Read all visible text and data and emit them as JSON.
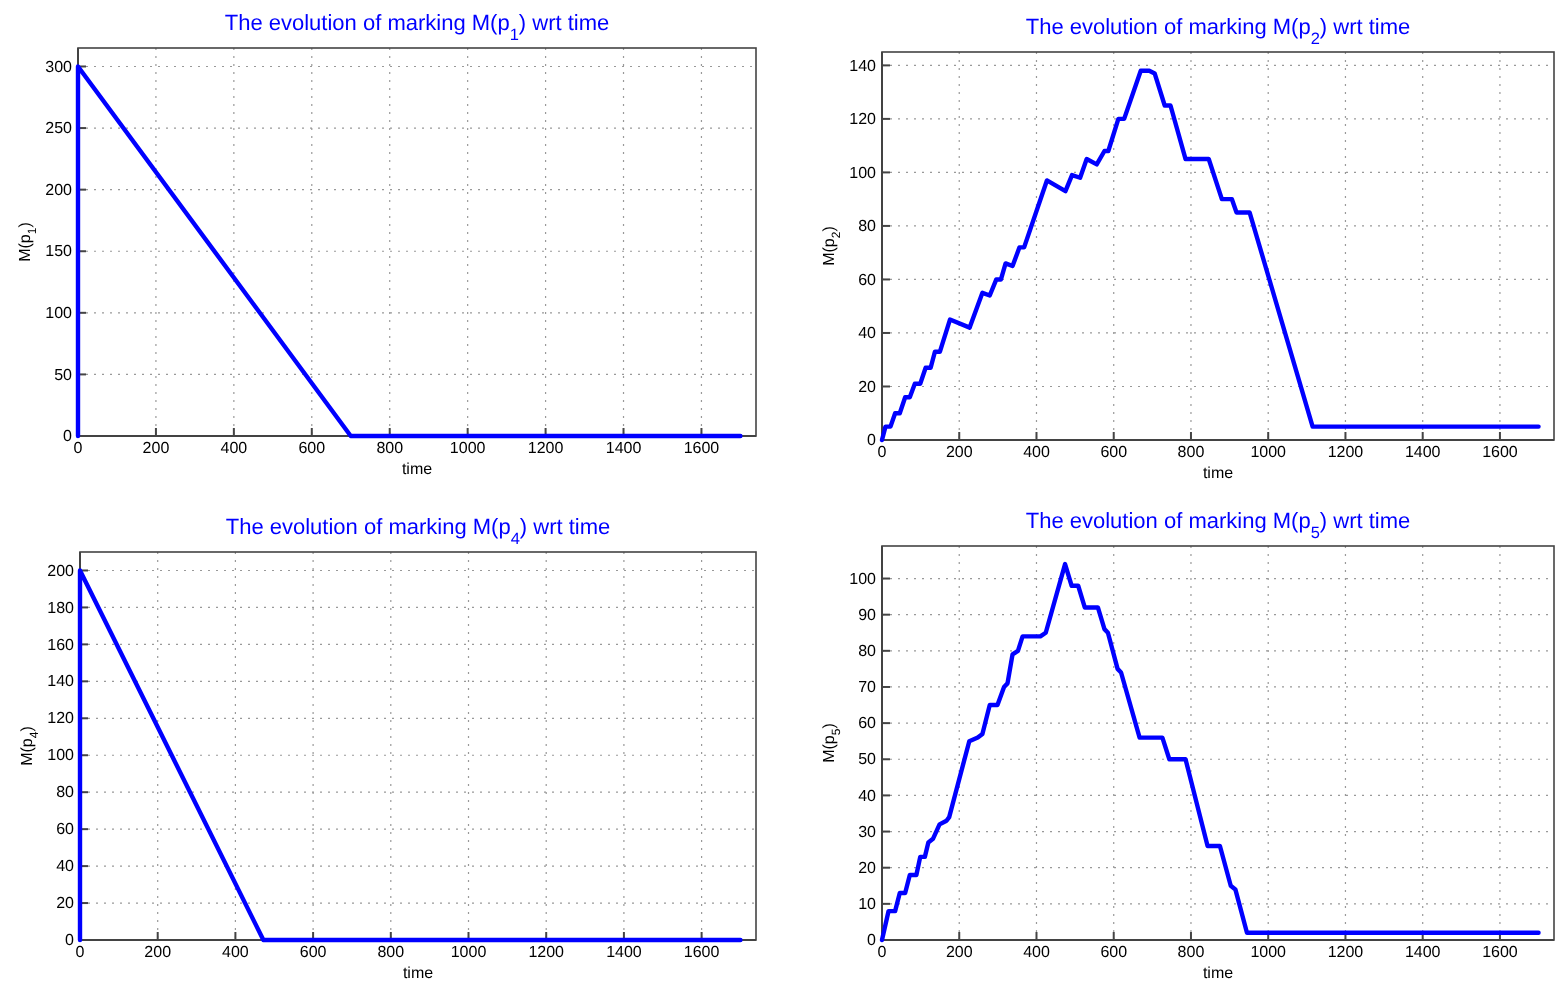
{
  "chart_data": [
    {
      "type": "line",
      "title": "The evolution of marking M(p$_{1}$) wrt time",
      "xlabel": "time",
      "ylabel": "M(p$_{1}$)",
      "color": "#0000ff",
      "grid": true,
      "line_style": "solid",
      "x": [
        0,
        0,
        700,
        1700
      ],
      "values": [
        0,
        300,
        0,
        0
      ],
      "xlim": [
        0,
        1740
      ],
      "ylim": [
        0,
        315
      ],
      "xticks": [
        0,
        200,
        400,
        600,
        800,
        1000,
        1200,
        1400,
        1600
      ],
      "yticks": [
        0,
        50,
        100,
        150,
        200,
        250,
        300
      ]
    },
    {
      "type": "line",
      "title": "The evolution of marking M(p$_{2}$) wrt time",
      "xlabel": "time",
      "ylabel": "M(p$_{2}$)",
      "color": "#0000ff",
      "grid": true,
      "line_style": "solid",
      "x": [
        0,
        9,
        22,
        34,
        46,
        60,
        72,
        85,
        99,
        113,
        126,
        137,
        150,
        176,
        227,
        260,
        279,
        296,
        308,
        320,
        338,
        356,
        368,
        427,
        475,
        492,
        513,
        530,
        556,
        576,
        586,
        612,
        627,
        670,
        692,
        706,
        732,
        747,
        786,
        846,
        880,
        906,
        918,
        952,
        1115,
        1700
      ],
      "values": [
        0,
        5,
        5,
        10,
        10,
        16,
        16,
        21,
        21,
        27,
        27,
        33,
        33,
        45,
        42,
        55,
        54,
        60,
        60,
        66,
        65,
        72,
        72,
        97,
        93,
        99,
        98,
        105,
        103,
        108,
        108,
        120,
        120,
        138,
        138,
        137,
        125,
        125,
        105,
        105,
        90,
        90,
        85,
        85,
        5,
        5
      ],
      "xlim": [
        0,
        1740
      ],
      "ylim": [
        0,
        145
      ],
      "xticks": [
        0,
        200,
        400,
        600,
        800,
        1000,
        1200,
        1400,
        1600
      ],
      "yticks": [
        0,
        20,
        40,
        60,
        80,
        100,
        120,
        140
      ]
    },
    {
      "type": "line",
      "title": "The evolution of marking M(p$_{4}$) wrt time",
      "xlabel": "time",
      "ylabel": "M(p$_{4}$)",
      "color": "#0000ff",
      "grid": true,
      "line_style": "solid",
      "x": [
        0,
        0,
        472,
        1700
      ],
      "values": [
        0,
        200,
        0,
        0
      ],
      "xlim": [
        0,
        1740
      ],
      "ylim": [
        0,
        210
      ],
      "xticks": [
        0,
        200,
        400,
        600,
        800,
        1000,
        1200,
        1400,
        1600
      ],
      "yticks": [
        0,
        20,
        40,
        60,
        80,
        100,
        120,
        140,
        160,
        180,
        200
      ]
    },
    {
      "type": "line",
      "title": "The evolution of marking M(p$_{5}$) wrt time",
      "xlabel": "time",
      "ylabel": "M(p$_{5}$)",
      "color": "#0000ff",
      "grid": true,
      "line_style": "solid",
      "x": [
        0,
        17,
        34,
        46,
        60,
        72,
        89,
        99,
        111,
        120,
        132,
        149,
        167,
        174,
        226,
        248,
        260,
        279,
        299,
        316,
        325,
        338,
        352,
        364,
        410,
        424,
        474,
        491,
        508,
        525,
        559,
        576,
        585,
        610,
        619,
        667,
        726,
        744,
        786,
        843,
        875,
        903,
        915,
        945,
        1700
      ],
      "values": [
        0,
        8,
        8,
        13,
        13,
        18,
        18,
        23,
        23,
        27,
        28,
        32,
        33,
        34,
        55,
        56,
        57,
        65,
        65,
        70,
        71,
        79,
        80,
        84,
        84,
        85,
        104,
        98,
        98,
        92,
        92,
        86,
        85,
        75,
        74,
        56,
        56,
        50,
        50,
        26,
        26,
        15,
        14,
        2,
        2
      ],
      "xlim": [
        0,
        1740
      ],
      "ylim": [
        0,
        109
      ],
      "xticks": [
        0,
        200,
        400,
        600,
        800,
        1000,
        1200,
        1400,
        1600
      ],
      "yticks": [
        0,
        10,
        20,
        30,
        40,
        50,
        60,
        70,
        80,
        90,
        100
      ]
    }
  ]
}
